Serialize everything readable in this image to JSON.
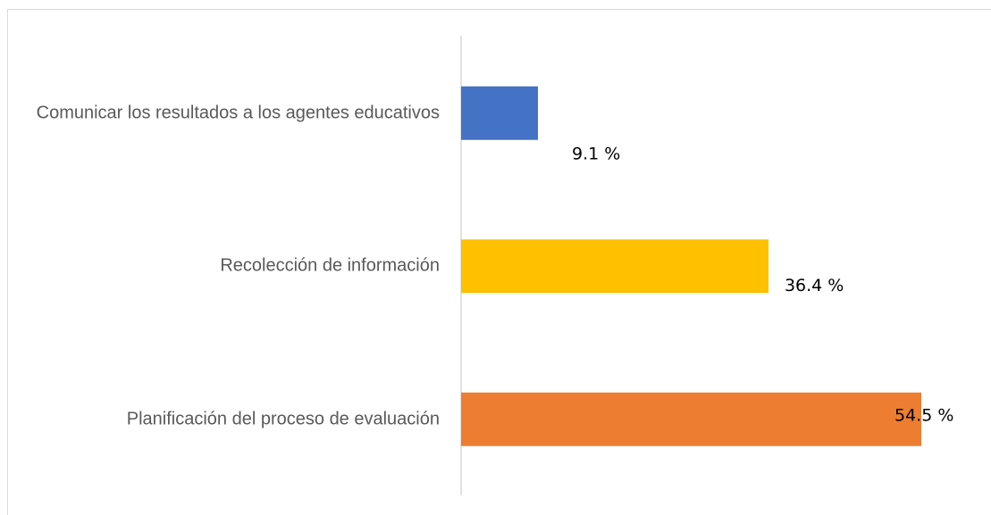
{
  "chart_data": {
    "type": "bar",
    "orientation": "horizontal",
    "categories": [
      "Comunicar los resultados a los agentes educativos",
      "Recolección de información",
      "Planificación del proceso de evaluación"
    ],
    "series": [
      {
        "values": [
          9.1,
          36.4,
          54.5
        ],
        "value_labels": [
          "9.1 %",
          "36.4 %",
          "54.5 %"
        ],
        "colors": [
          "#4472c4",
          "#ffc000",
          "#ed7d31"
        ]
      }
    ],
    "xlim": [
      0,
      54.5
    ]
  }
}
